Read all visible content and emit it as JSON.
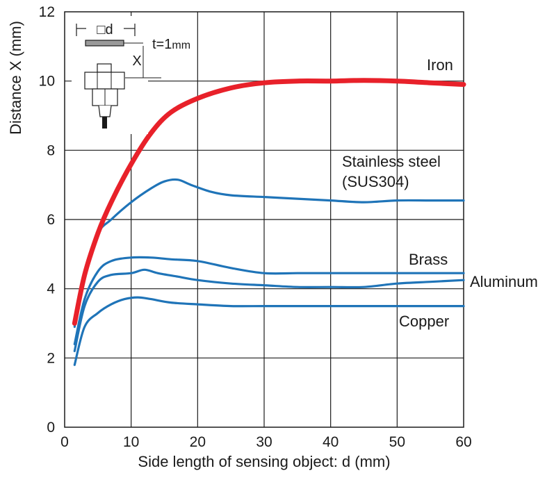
{
  "chart_data": {
    "type": "line",
    "title": "",
    "xlabel": "Side length of sensing object: d (mm)",
    "ylabel": "Distance X (mm)",
    "xlim": [
      0,
      60
    ],
    "ylim": [
      0,
      12
    ],
    "xticks": [
      "0",
      "10",
      "20",
      "30",
      "40",
      "50",
      "60"
    ],
    "yticks": [
      "0",
      "2",
      "4",
      "6",
      "8",
      "10",
      "12"
    ],
    "grid": true,
    "series": [
      {
        "name": "Iron",
        "color": "#e8212a",
        "x": [
          1.5,
          3,
          5,
          7,
          10,
          13,
          16,
          20,
          25,
          30,
          35,
          40,
          45,
          50,
          55,
          60
        ],
        "y": [
          3.0,
          4.4,
          5.6,
          6.5,
          7.6,
          8.5,
          9.1,
          9.5,
          9.8,
          9.95,
          10.0,
          10.0,
          10.02,
          10.0,
          9.95,
          9.9
        ]
      },
      {
        "name": "Stainless steel (SUS304)",
        "color": "#1f74b8",
        "x": [
          1.5,
          3,
          5,
          7,
          10,
          13,
          15,
          17,
          19,
          22,
          25,
          30,
          35,
          40,
          45,
          50,
          55,
          60
        ],
        "y": [
          2.9,
          4.5,
          5.6,
          6.0,
          6.5,
          6.9,
          7.1,
          7.15,
          7.0,
          6.8,
          6.7,
          6.65,
          6.6,
          6.55,
          6.5,
          6.55,
          6.55,
          6.55
        ]
      },
      {
        "name": "Brass",
        "color": "#1f74b8",
        "x": [
          1.5,
          3,
          5,
          7,
          10,
          13,
          16,
          20,
          25,
          30,
          35,
          40,
          45,
          50,
          55,
          60
        ],
        "y": [
          2.4,
          3.7,
          4.5,
          4.8,
          4.9,
          4.9,
          4.85,
          4.8,
          4.6,
          4.45,
          4.45,
          4.45,
          4.45,
          4.45,
          4.45,
          4.45
        ]
      },
      {
        "name": "Aluminum",
        "color": "#1f74b8",
        "x": [
          1.5,
          3,
          5,
          7,
          10,
          12,
          14,
          17,
          20,
          25,
          30,
          35,
          40,
          45,
          50,
          55,
          60
        ],
        "y": [
          2.2,
          3.5,
          4.2,
          4.4,
          4.45,
          4.55,
          4.45,
          4.35,
          4.25,
          4.15,
          4.1,
          4.05,
          4.05,
          4.05,
          4.15,
          4.2,
          4.25
        ]
      },
      {
        "name": "Copper",
        "color": "#1f74b8",
        "x": [
          1.5,
          3,
          5,
          7,
          9,
          11,
          13,
          16,
          20,
          25,
          30,
          35,
          40,
          45,
          50,
          55,
          60
        ],
        "y": [
          1.8,
          2.9,
          3.3,
          3.55,
          3.7,
          3.75,
          3.7,
          3.6,
          3.55,
          3.5,
          3.5,
          3.5,
          3.5,
          3.5,
          3.5,
          3.5,
          3.5
        ]
      }
    ],
    "labels": {
      "iron": "Iron",
      "stainless_line1": "Stainless steel",
      "stainless_line2": "(SUS304)",
      "brass": "Brass",
      "aluminum": "Aluminum",
      "copper": "Copper"
    },
    "diagram": {
      "side_label": "□d",
      "thickness_label": "t=1",
      "thickness_unit": "mm",
      "distance_label": "X"
    }
  }
}
